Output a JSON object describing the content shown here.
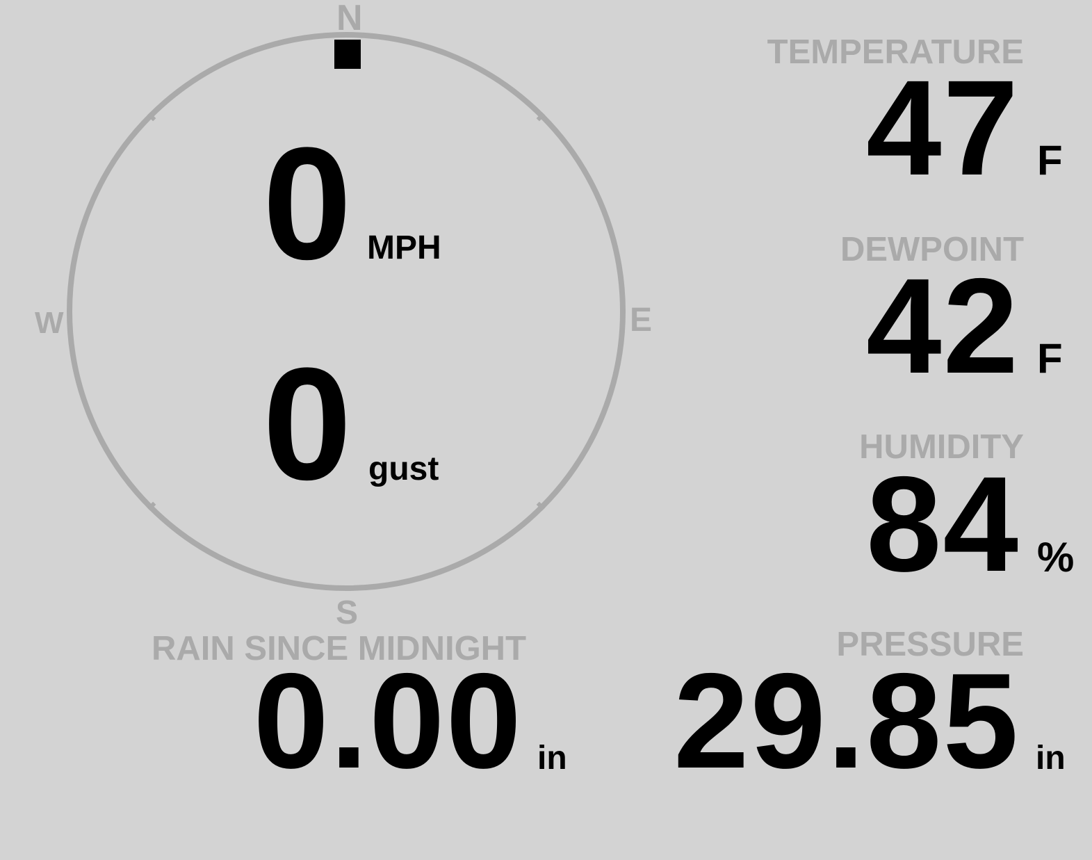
{
  "colors": {
    "background": "#d3d3d3",
    "label": "#aaaaaa",
    "value": "#000000",
    "compass_ring": "#aaaaaa",
    "wind_marker": "#000000"
  },
  "wind": {
    "direction_deg": 0,
    "compass": {
      "n": "N",
      "e": "E",
      "s": "S",
      "w": "W"
    },
    "speed": "0",
    "speed_unit": "MPH",
    "gust": "0",
    "gust_unit": "gust"
  },
  "temperature": {
    "label": "TEMPERATURE",
    "value": "47",
    "unit": "F"
  },
  "dewpoint": {
    "label": "DEWPOINT",
    "value": "42",
    "unit": "F"
  },
  "humidity": {
    "label": "HUMIDITY",
    "value": "84",
    "unit": "%"
  },
  "pressure": {
    "label": "PRESSURE",
    "value": "29.85",
    "unit": "in"
  },
  "rain": {
    "label": "RAIN SINCE MIDNIGHT",
    "value": "0.00",
    "unit": "in"
  }
}
